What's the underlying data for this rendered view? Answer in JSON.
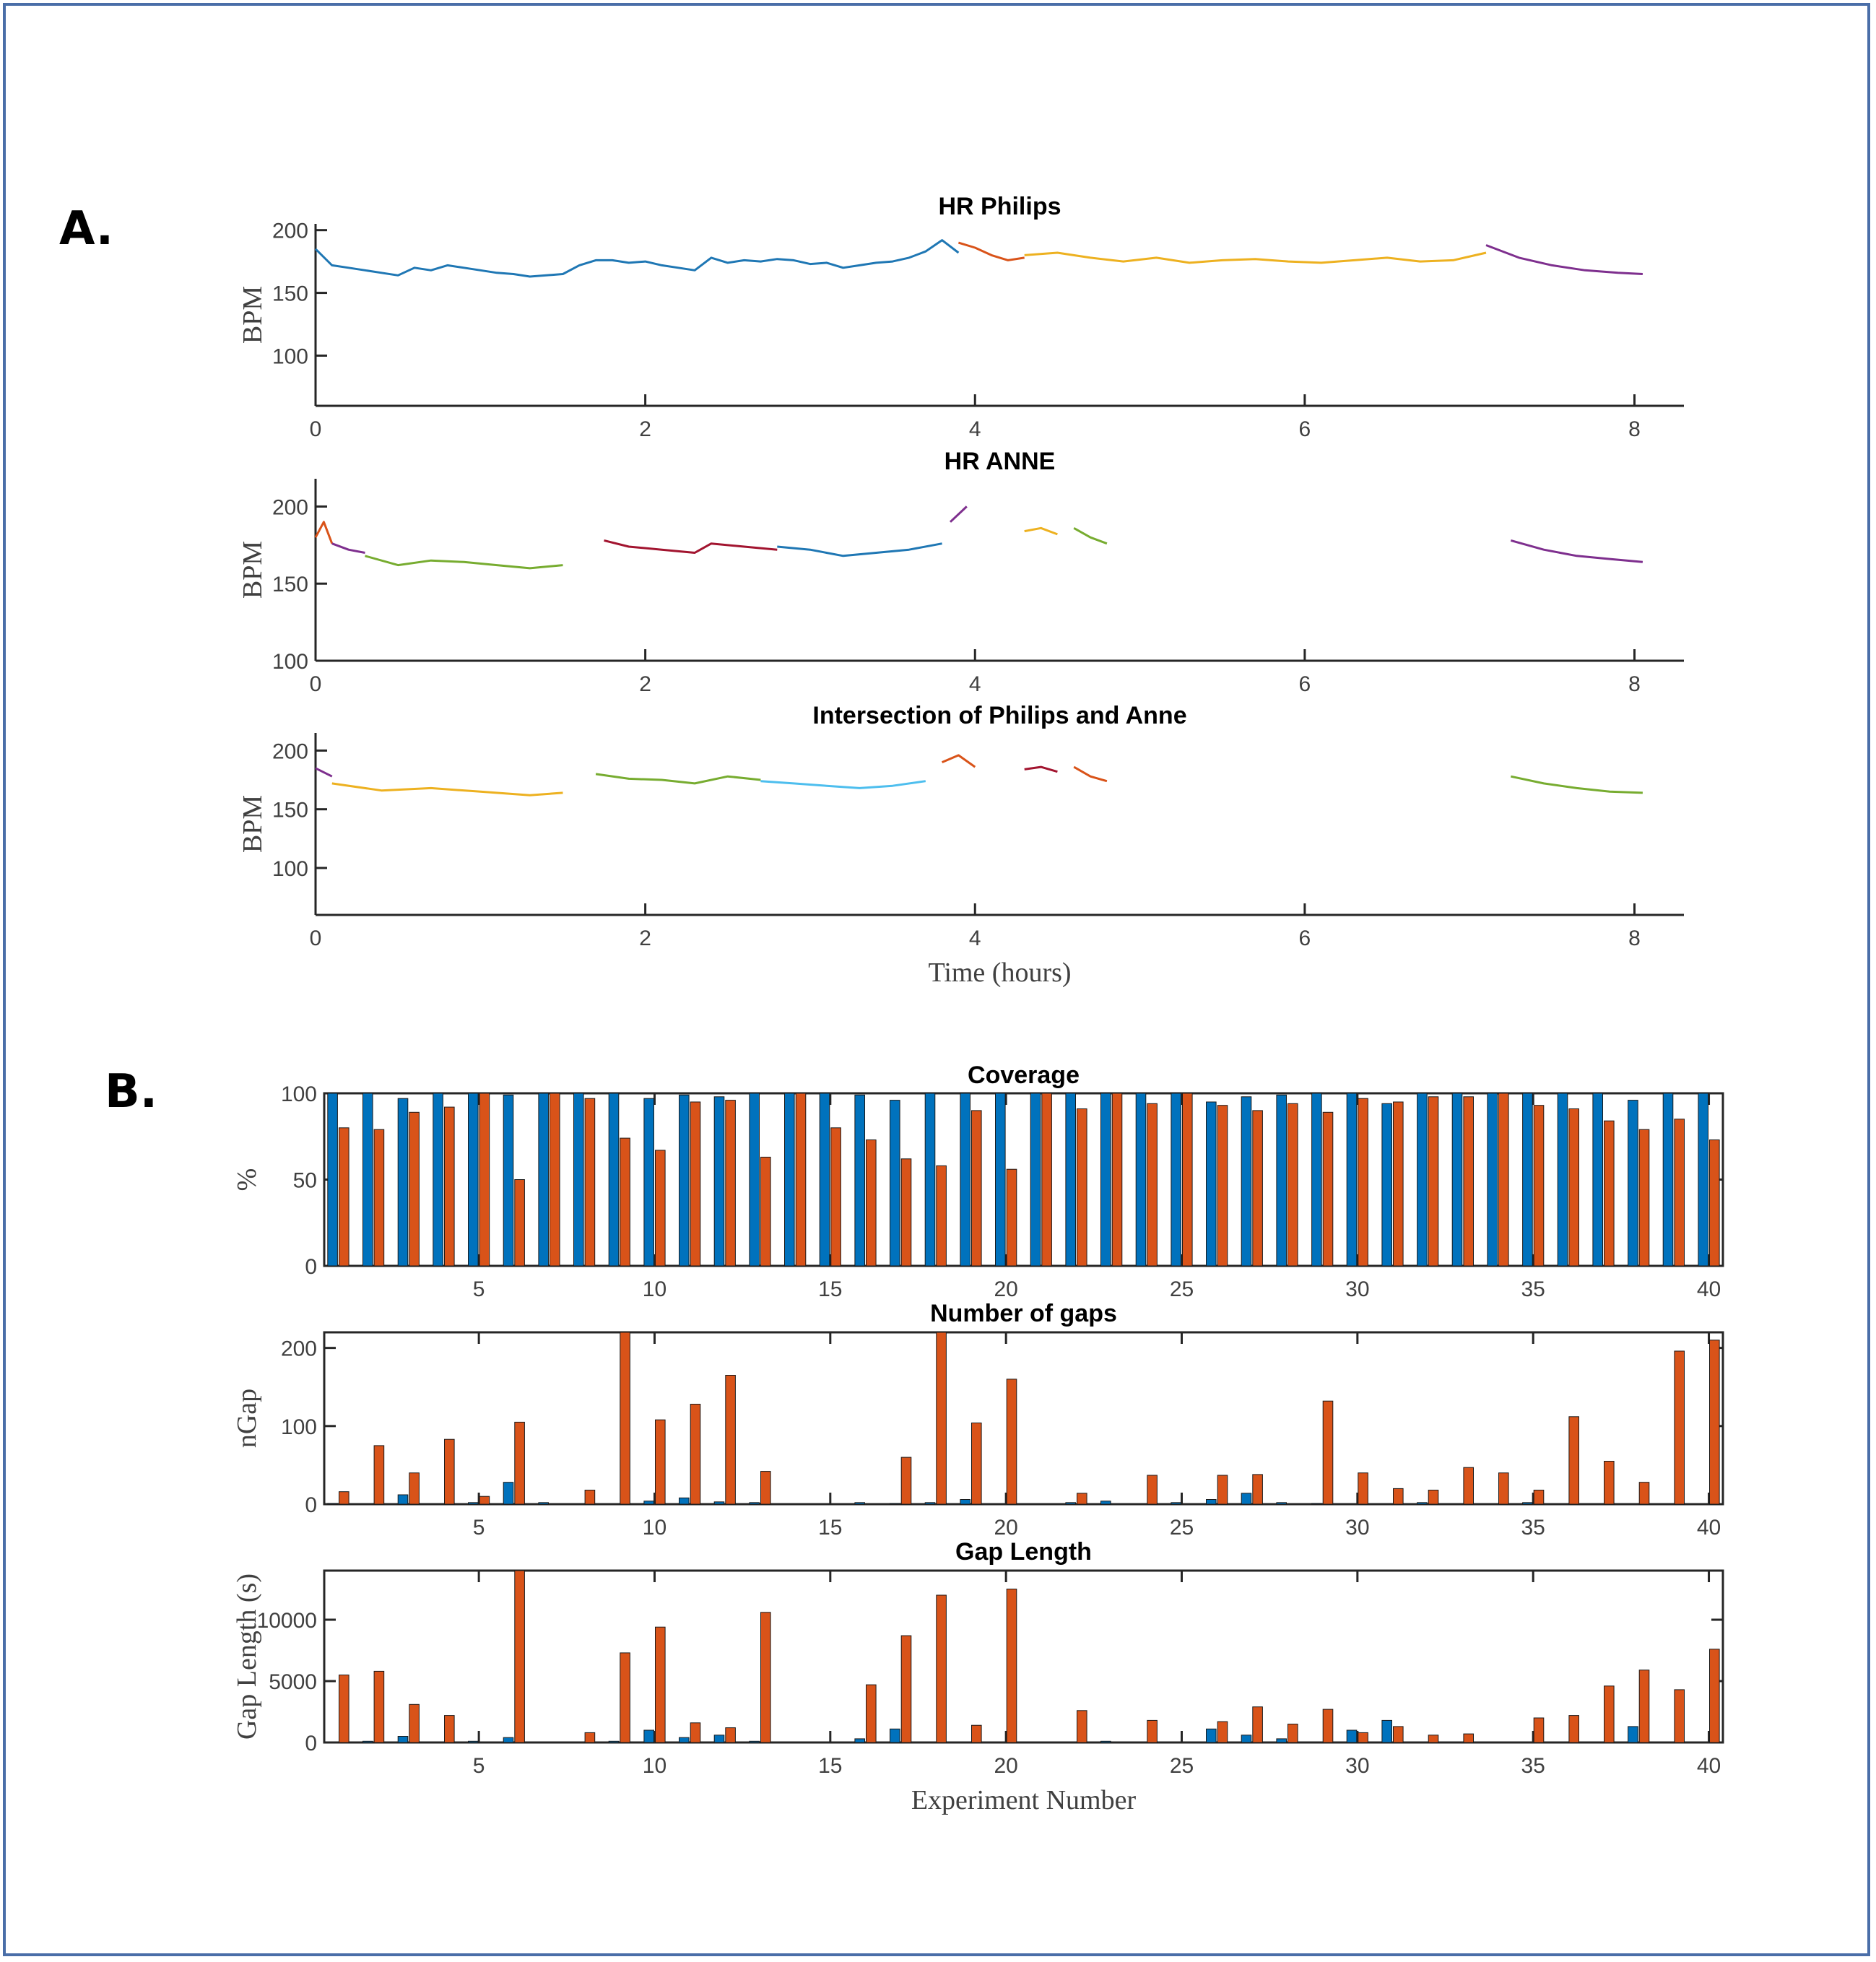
{
  "figure": {
    "panel_a_label": "A.",
    "panel_b_label": "B."
  },
  "chart_data": [
    {
      "type": "line",
      "title": "HR Philips",
      "xlabel": "",
      "ylabel": "BPM",
      "xlim": [
        0,
        8.3
      ],
      "ylim": [
        60,
        205
      ],
      "xticks": [
        0,
        2,
        4,
        6,
        8
      ],
      "yticks": [
        100,
        150,
        200
      ],
      "series": [
        {
          "color": "#1f77b4",
          "x": [
            0.0,
            0.1,
            0.2,
            0.3,
            0.4,
            0.5,
            0.6,
            0.7,
            0.8,
            0.9,
            1.0,
            1.1,
            1.2,
            1.3,
            1.4,
            1.5,
            1.6,
            1.7,
            1.8,
            1.9,
            2.0,
            2.1,
            2.2,
            2.3,
            2.4,
            2.5,
            2.6,
            2.7,
            2.8,
            2.9,
            3.0,
            3.1,
            3.2,
            3.3,
            3.4,
            3.5,
            3.6,
            3.7,
            3.8,
            3.9
          ],
          "y": [
            185,
            172,
            170,
            168,
            166,
            164,
            170,
            168,
            172,
            170,
            168,
            166,
            165,
            163,
            164,
            165,
            172,
            176,
            176,
            174,
            175,
            172,
            170,
            168,
            178,
            174,
            176,
            175,
            177,
            176,
            173,
            174,
            170,
            172,
            174,
            175,
            178,
            183,
            192,
            182
          ]
        },
        {
          "color": "#d95319",
          "x": [
            3.9,
            4.0,
            4.1,
            4.2,
            4.3
          ],
          "y": [
            190,
            186,
            180,
            176,
            178
          ]
        },
        {
          "color": "#edb120",
          "x": [
            4.3,
            4.5,
            4.7,
            4.9,
            5.1,
            5.3,
            5.5,
            5.7,
            5.9,
            6.1,
            6.3,
            6.5,
            6.7,
            6.9,
            7.1
          ],
          "y": [
            180,
            182,
            178,
            175,
            178,
            174,
            176,
            177,
            175,
            174,
            176,
            178,
            175,
            176,
            182
          ]
        },
        {
          "color": "#7e2f8e",
          "x": [
            7.1,
            7.3,
            7.5,
            7.7,
            7.9,
            8.05
          ],
          "y": [
            188,
            178,
            172,
            168,
            166,
            165
          ]
        }
      ]
    },
    {
      "type": "line",
      "title": "HR ANNE",
      "xlabel": "",
      "ylabel": "BPM",
      "xlim": [
        0,
        8.3
      ],
      "ylim": [
        100,
        218
      ],
      "xticks": [
        0,
        2,
        4,
        6,
        8
      ],
      "yticks": [
        100,
        150,
        200
      ],
      "series": [
        {
          "color": "#d95319",
          "x": [
            0.0,
            0.05,
            0.1
          ],
          "y": [
            180,
            190,
            176
          ]
        },
        {
          "color": "#7e2f8e",
          "x": [
            0.1,
            0.2,
            0.3
          ],
          "y": [
            176,
            172,
            170
          ]
        },
        {
          "color": "#77ac30",
          "x": [
            0.3,
            0.5,
            0.7,
            0.9,
            1.1,
            1.3,
            1.5
          ],
          "y": [
            168,
            162,
            165,
            164,
            162,
            160,
            162
          ]
        },
        {
          "color": "#a2142f",
          "x": [
            1.75,
            1.9,
            2.1,
            2.3,
            2.4,
            2.6,
            2.8
          ],
          "y": [
            178,
            174,
            172,
            170,
            176,
            174,
            172
          ]
        },
        {
          "color": "#1f77b4",
          "x": [
            2.8,
            3.0,
            3.2,
            3.4,
            3.6,
            3.8
          ],
          "y": [
            174,
            172,
            168,
            170,
            172,
            176
          ]
        },
        {
          "color": "#7e2f8e",
          "x": [
            3.85,
            3.95
          ],
          "y": [
            190,
            200
          ]
        },
        {
          "color": "#edb120",
          "x": [
            4.3,
            4.4,
            4.5
          ],
          "y": [
            184,
            186,
            182
          ]
        },
        {
          "color": "#77ac30",
          "x": [
            4.6,
            4.7,
            4.8
          ],
          "y": [
            186,
            180,
            176
          ]
        },
        {
          "color": "#7e2f8e",
          "x": [
            7.25,
            7.45,
            7.65,
            7.85,
            8.05
          ],
          "y": [
            178,
            172,
            168,
            166,
            164
          ]
        }
      ]
    },
    {
      "type": "line",
      "title": "Intersection of Philips and Anne",
      "xlabel": "Time (hours)",
      "ylabel": "BPM",
      "xlim": [
        0,
        8.3
      ],
      "ylim": [
        60,
        215
      ],
      "xticks": [
        0,
        2,
        4,
        6,
        8
      ],
      "yticks": [
        100,
        150,
        200
      ],
      "series": [
        {
          "color": "#7e2f8e",
          "x": [
            0.0,
            0.1
          ],
          "y": [
            185,
            178
          ]
        },
        {
          "color": "#edb120",
          "x": [
            0.1,
            0.4,
            0.7,
            1.0,
            1.3,
            1.5
          ],
          "y": [
            172,
            166,
            168,
            165,
            162,
            164
          ]
        },
        {
          "color": "#77ac30",
          "x": [
            1.7,
            1.9,
            2.1,
            2.3,
            2.5,
            2.7
          ],
          "y": [
            180,
            176,
            175,
            172,
            178,
            175
          ]
        },
        {
          "color": "#4dbeee",
          "x": [
            2.7,
            2.9,
            3.1,
            3.3,
            3.5,
            3.7
          ],
          "y": [
            174,
            172,
            170,
            168,
            170,
            174
          ]
        },
        {
          "color": "#d95319",
          "x": [
            3.8,
            3.9,
            4.0
          ],
          "y": [
            190,
            196,
            186
          ]
        },
        {
          "color": "#a2142f",
          "x": [
            4.3,
            4.4,
            4.5
          ],
          "y": [
            184,
            186,
            182
          ]
        },
        {
          "color": "#d95319",
          "x": [
            4.6,
            4.7,
            4.8
          ],
          "y": [
            186,
            178,
            174
          ]
        },
        {
          "color": "#77ac30",
          "x": [
            7.25,
            7.45,
            7.65,
            7.85,
            8.05
          ],
          "y": [
            178,
            172,
            168,
            165,
            164
          ]
        }
      ]
    },
    {
      "type": "bar",
      "title": "Coverage",
      "xlabel": "",
      "ylabel": "%",
      "xlim": [
        0.6,
        40.4
      ],
      "ylim": [
        0,
        100
      ],
      "xticks": [
        5,
        10,
        15,
        20,
        25,
        30,
        35,
        40
      ],
      "yticks": [
        0,
        50,
        100
      ],
      "categories": [
        1,
        2,
        3,
        4,
        5,
        6,
        7,
        8,
        9,
        10,
        11,
        12,
        13,
        14,
        15,
        16,
        17,
        18,
        19,
        20,
        21,
        22,
        23,
        24,
        25,
        26,
        27,
        28,
        29,
        30,
        31,
        32,
        33,
        34,
        35,
        36,
        37,
        38,
        39,
        40
      ],
      "series": [
        {
          "color": "#0072bd",
          "values": [
            100,
            100,
            97,
            100,
            100,
            99,
            100,
            100,
            100,
            97,
            99,
            98,
            100,
            100,
            100,
            99,
            96,
            100,
            100,
            100,
            100,
            100,
            100,
            100,
            100,
            95,
            98,
            99,
            100,
            100,
            94,
            100,
            100,
            100,
            100,
            100,
            100,
            96,
            100,
            100
          ]
        },
        {
          "color": "#d95319",
          "values": [
            80,
            79,
            89,
            92,
            100,
            50,
            100,
            97,
            74,
            67,
            95,
            96,
            63,
            100,
            80,
            73,
            62,
            58,
            90,
            56,
            100,
            91,
            100,
            94,
            100,
            93,
            90,
            94,
            89,
            97,
            95,
            98,
            98,
            100,
            93,
            91,
            84,
            79,
            85,
            73
          ]
        }
      ]
    },
    {
      "type": "bar",
      "title": "Number of gaps",
      "xlabel": "",
      "ylabel": "nGap",
      "xlim": [
        0.6,
        40.4
      ],
      "ylim": [
        0,
        220
      ],
      "xticks": [
        5,
        10,
        15,
        20,
        25,
        30,
        35,
        40
      ],
      "yticks": [
        0,
        100,
        200
      ],
      "categories": [
        1,
        2,
        3,
        4,
        5,
        6,
        7,
        8,
        9,
        10,
        11,
        12,
        13,
        14,
        15,
        16,
        17,
        18,
        19,
        20,
        21,
        22,
        23,
        24,
        25,
        26,
        27,
        28,
        29,
        30,
        31,
        32,
        33,
        34,
        35,
        36,
        37,
        38,
        39,
        40
      ],
      "series": [
        {
          "color": "#0072bd",
          "values": [
            1,
            0,
            12,
            0,
            2,
            28,
            2,
            0,
            0,
            4,
            8,
            3,
            2,
            0,
            0,
            2,
            1,
            2,
            6,
            0,
            0,
            2,
            4,
            0,
            2,
            6,
            14,
            2,
            1,
            0,
            0,
            2,
            0,
            0,
            2,
            0,
            0,
            0,
            0,
            0
          ]
        },
        {
          "color": "#d95319",
          "values": [
            16,
            75,
            40,
            83,
            10,
            105,
            0,
            18,
            220,
            108,
            128,
            165,
            42,
            0,
            0,
            0,
            60,
            220,
            104,
            160,
            0,
            14,
            0,
            37,
            0,
            37,
            38,
            0,
            132,
            40,
            20,
            18,
            47,
            40,
            18,
            112,
            55,
            28,
            196,
            210
          ]
        }
      ]
    },
    {
      "type": "bar",
      "title": "Gap Length",
      "xlabel": "Experiment Number",
      "ylabel": "Gap Length (s)",
      "xlim": [
        0.6,
        40.4
      ],
      "ylim": [
        0,
        14000
      ],
      "xticks": [
        5,
        10,
        15,
        20,
        25,
        30,
        35,
        40
      ],
      "yticks": [
        0,
        5000,
        10000
      ],
      "categories": [
        1,
        2,
        3,
        4,
        5,
        6,
        7,
        8,
        9,
        10,
        11,
        12,
        13,
        14,
        15,
        16,
        17,
        18,
        19,
        20,
        21,
        22,
        23,
        24,
        25,
        26,
        27,
        28,
        29,
        30,
        31,
        32,
        33,
        34,
        35,
        36,
        37,
        38,
        39,
        40
      ],
      "series": [
        {
          "color": "#0072bd",
          "values": [
            0,
            100,
            500,
            0,
            100,
            400,
            0,
            0,
            100,
            1000,
            400,
            600,
            100,
            0,
            0,
            300,
            1100,
            0,
            0,
            0,
            0,
            0,
            100,
            0,
            0,
            1100,
            600,
            300,
            0,
            1000,
            1800,
            0,
            0,
            0,
            0,
            0,
            0,
            1300,
            0,
            0
          ]
        },
        {
          "color": "#d95319",
          "values": [
            5500,
            5800,
            3100,
            2200,
            0,
            14000,
            0,
            800,
            7300,
            9400,
            1600,
            1200,
            10600,
            0,
            0,
            4700,
            8700,
            12000,
            1400,
            12500,
            0,
            2600,
            0,
            1800,
            0,
            1700,
            2900,
            1500,
            2700,
            800,
            1300,
            600,
            700,
            0,
            2000,
            2200,
            4600,
            5900,
            4300,
            7600
          ]
        }
      ]
    }
  ]
}
